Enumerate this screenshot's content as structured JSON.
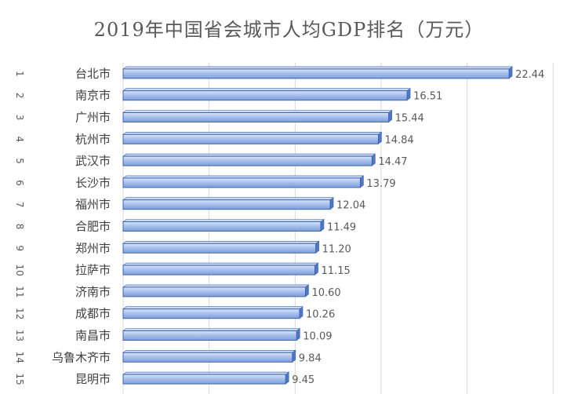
{
  "chart_data": {
    "type": "bar",
    "orientation": "horizontal",
    "title": "2019年中国省会城市人均GDP排名（万元）",
    "ranks": [
      "1",
      "2",
      "3",
      "4",
      "5",
      "6",
      "7",
      "8",
      "9",
      "10",
      "11",
      "12",
      "13",
      "14",
      "15"
    ],
    "categories": [
      "台北市",
      "南京市",
      "广州市",
      "杭州市",
      "武汉市",
      "长沙市",
      "福州市",
      "合肥市",
      "郑州市",
      "拉萨市",
      "济南市",
      "成都市",
      "南昌市",
      "乌鲁木齐市",
      "昆明市"
    ],
    "values": [
      22.44,
      16.51,
      15.44,
      14.84,
      14.47,
      13.79,
      12.04,
      11.49,
      11.2,
      11.15,
      10.6,
      10.26,
      10.09,
      9.84,
      9.45
    ],
    "value_labels": [
      "22.44",
      "16.51",
      "15.44",
      "14.84",
      "14.47",
      "13.79",
      "12.04",
      "11.49",
      "11.20",
      "11.15",
      "10.60",
      "10.26",
      "10.09",
      "9.84",
      "9.45"
    ],
    "xlim": [
      0,
      30
    ],
    "grid": true,
    "bar_color": "#9fb9e8",
    "bar_edge_color": "#3a64b5"
  }
}
